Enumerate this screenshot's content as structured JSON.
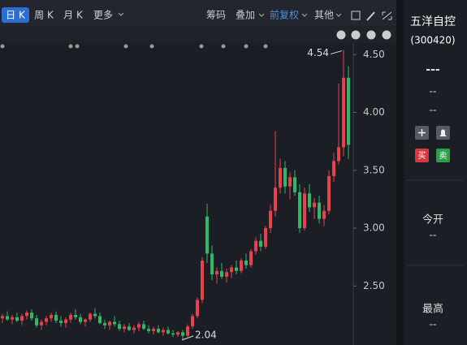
{
  "toolbar": {
    "periods": [
      "日 K",
      "周 K",
      "月 K"
    ],
    "more": "更多",
    "tools": [
      "筹码",
      "叠加",
      "前复权",
      "其他"
    ]
  },
  "chart_data": {
    "type": "candlestick",
    "open": [
      2.22,
      2.24,
      2.21,
      2.23,
      2.2,
      2.24,
      2.27,
      2.22,
      2.16,
      2.19,
      2.22,
      2.25,
      2.2,
      2.18,
      2.21,
      2.25,
      2.23,
      2.19,
      2.21,
      2.26,
      2.24,
      2.18,
      2.16,
      2.19,
      2.17,
      2.13,
      2.15,
      2.12,
      2.14,
      2.17,
      2.13,
      2.11,
      2.13,
      2.1,
      2.12,
      2.09,
      2.08,
      2.1,
      2.07,
      2.15,
      2.24,
      2.38,
      3.1,
      2.78,
      2.6,
      2.63,
      2.58,
      2.62,
      2.66,
      2.63,
      2.72,
      2.68,
      2.8,
      2.89,
      2.84,
      3.0,
      3.15,
      3.35,
      3.52,
      3.36,
      3.44,
      3.31,
      3.0,
      3.3,
      3.18,
      3.22,
      3.08,
      3.15,
      3.45,
      3.58,
      3.7,
      4.3
    ],
    "high": [
      2.26,
      2.28,
      2.25,
      2.27,
      2.26,
      2.29,
      2.3,
      2.25,
      2.21,
      2.24,
      2.27,
      2.28,
      2.24,
      2.23,
      2.27,
      2.3,
      2.26,
      2.22,
      2.27,
      2.31,
      2.27,
      2.21,
      2.2,
      2.24,
      2.2,
      2.17,
      2.18,
      2.16,
      2.19,
      2.2,
      2.16,
      2.15,
      2.16,
      2.14,
      2.15,
      2.12,
      2.11,
      2.12,
      2.17,
      2.26,
      2.4,
      2.75,
      3.21,
      2.85,
      2.66,
      2.7,
      2.65,
      2.68,
      2.72,
      2.74,
      2.78,
      2.82,
      2.92,
      2.95,
      3.02,
      3.2,
      3.84,
      3.6,
      3.58,
      3.48,
      3.5,
      3.38,
      3.35,
      3.38,
      3.26,
      3.28,
      3.2,
      3.5,
      3.65,
      4.25,
      4.54,
      4.4
    ],
    "low": [
      2.18,
      2.2,
      2.17,
      2.19,
      2.16,
      2.21,
      2.2,
      2.14,
      2.12,
      2.16,
      2.19,
      2.18,
      2.15,
      2.14,
      2.18,
      2.21,
      2.17,
      2.15,
      2.19,
      2.22,
      2.17,
      2.13,
      2.12,
      2.15,
      2.11,
      2.1,
      2.11,
      2.09,
      2.11,
      2.12,
      2.09,
      2.08,
      2.09,
      2.07,
      2.08,
      2.06,
      2.06,
      2.04,
      2.06,
      2.13,
      2.22,
      2.35,
      2.7,
      2.55,
      2.52,
      2.56,
      2.53,
      2.57,
      2.6,
      2.61,
      2.65,
      2.66,
      2.77,
      2.8,
      2.82,
      2.96,
      3.1,
      3.3,
      3.3,
      3.25,
      3.28,
      2.96,
      2.98,
      3.14,
      3.08,
      3.04,
      3.02,
      3.12,
      3.4,
      3.55,
      3.62,
      3.6
    ],
    "close": [
      2.24,
      2.21,
      2.23,
      2.2,
      2.24,
      2.27,
      2.22,
      2.16,
      2.19,
      2.22,
      2.25,
      2.2,
      2.18,
      2.21,
      2.25,
      2.23,
      2.19,
      2.21,
      2.26,
      2.24,
      2.18,
      2.16,
      2.19,
      2.17,
      2.13,
      2.15,
      2.12,
      2.14,
      2.17,
      2.13,
      2.11,
      2.13,
      2.1,
      2.12,
      2.09,
      2.08,
      2.1,
      2.07,
      2.15,
      2.24,
      2.38,
      2.72,
      2.78,
      2.6,
      2.63,
      2.58,
      2.62,
      2.66,
      2.63,
      2.72,
      2.68,
      2.8,
      2.89,
      2.84,
      3.0,
      3.15,
      3.35,
      3.52,
      3.36,
      3.44,
      3.31,
      3.0,
      3.3,
      3.18,
      3.22,
      3.08,
      3.15,
      3.45,
      3.58,
      3.7,
      4.3,
      3.72
    ],
    "up_color": "#e8414e",
    "down_color": "#2fb86a",
    "ylim": [
      1.99,
      4.6
    ],
    "yticks": [
      {
        "value": 2.5,
        "label": "2.50"
      },
      {
        "value": 3,
        "label": "3.00"
      },
      {
        "value": 3.5,
        "label": "3.50"
      },
      {
        "value": 4,
        "label": "4.00"
      },
      {
        "value": 4.5,
        "label": "4.50"
      }
    ],
    "annotations": [
      4.54,
      2.04
    ]
  },
  "panel": {
    "name": "五洋自控",
    "code": "(300420)",
    "price": "---",
    "change": "--",
    "pct": "--",
    "buy": "买",
    "sell": "卖",
    "fields": [
      {
        "label": "今开",
        "value": "--"
      },
      {
        "label": "最高",
        "value": "--"
      }
    ]
  }
}
